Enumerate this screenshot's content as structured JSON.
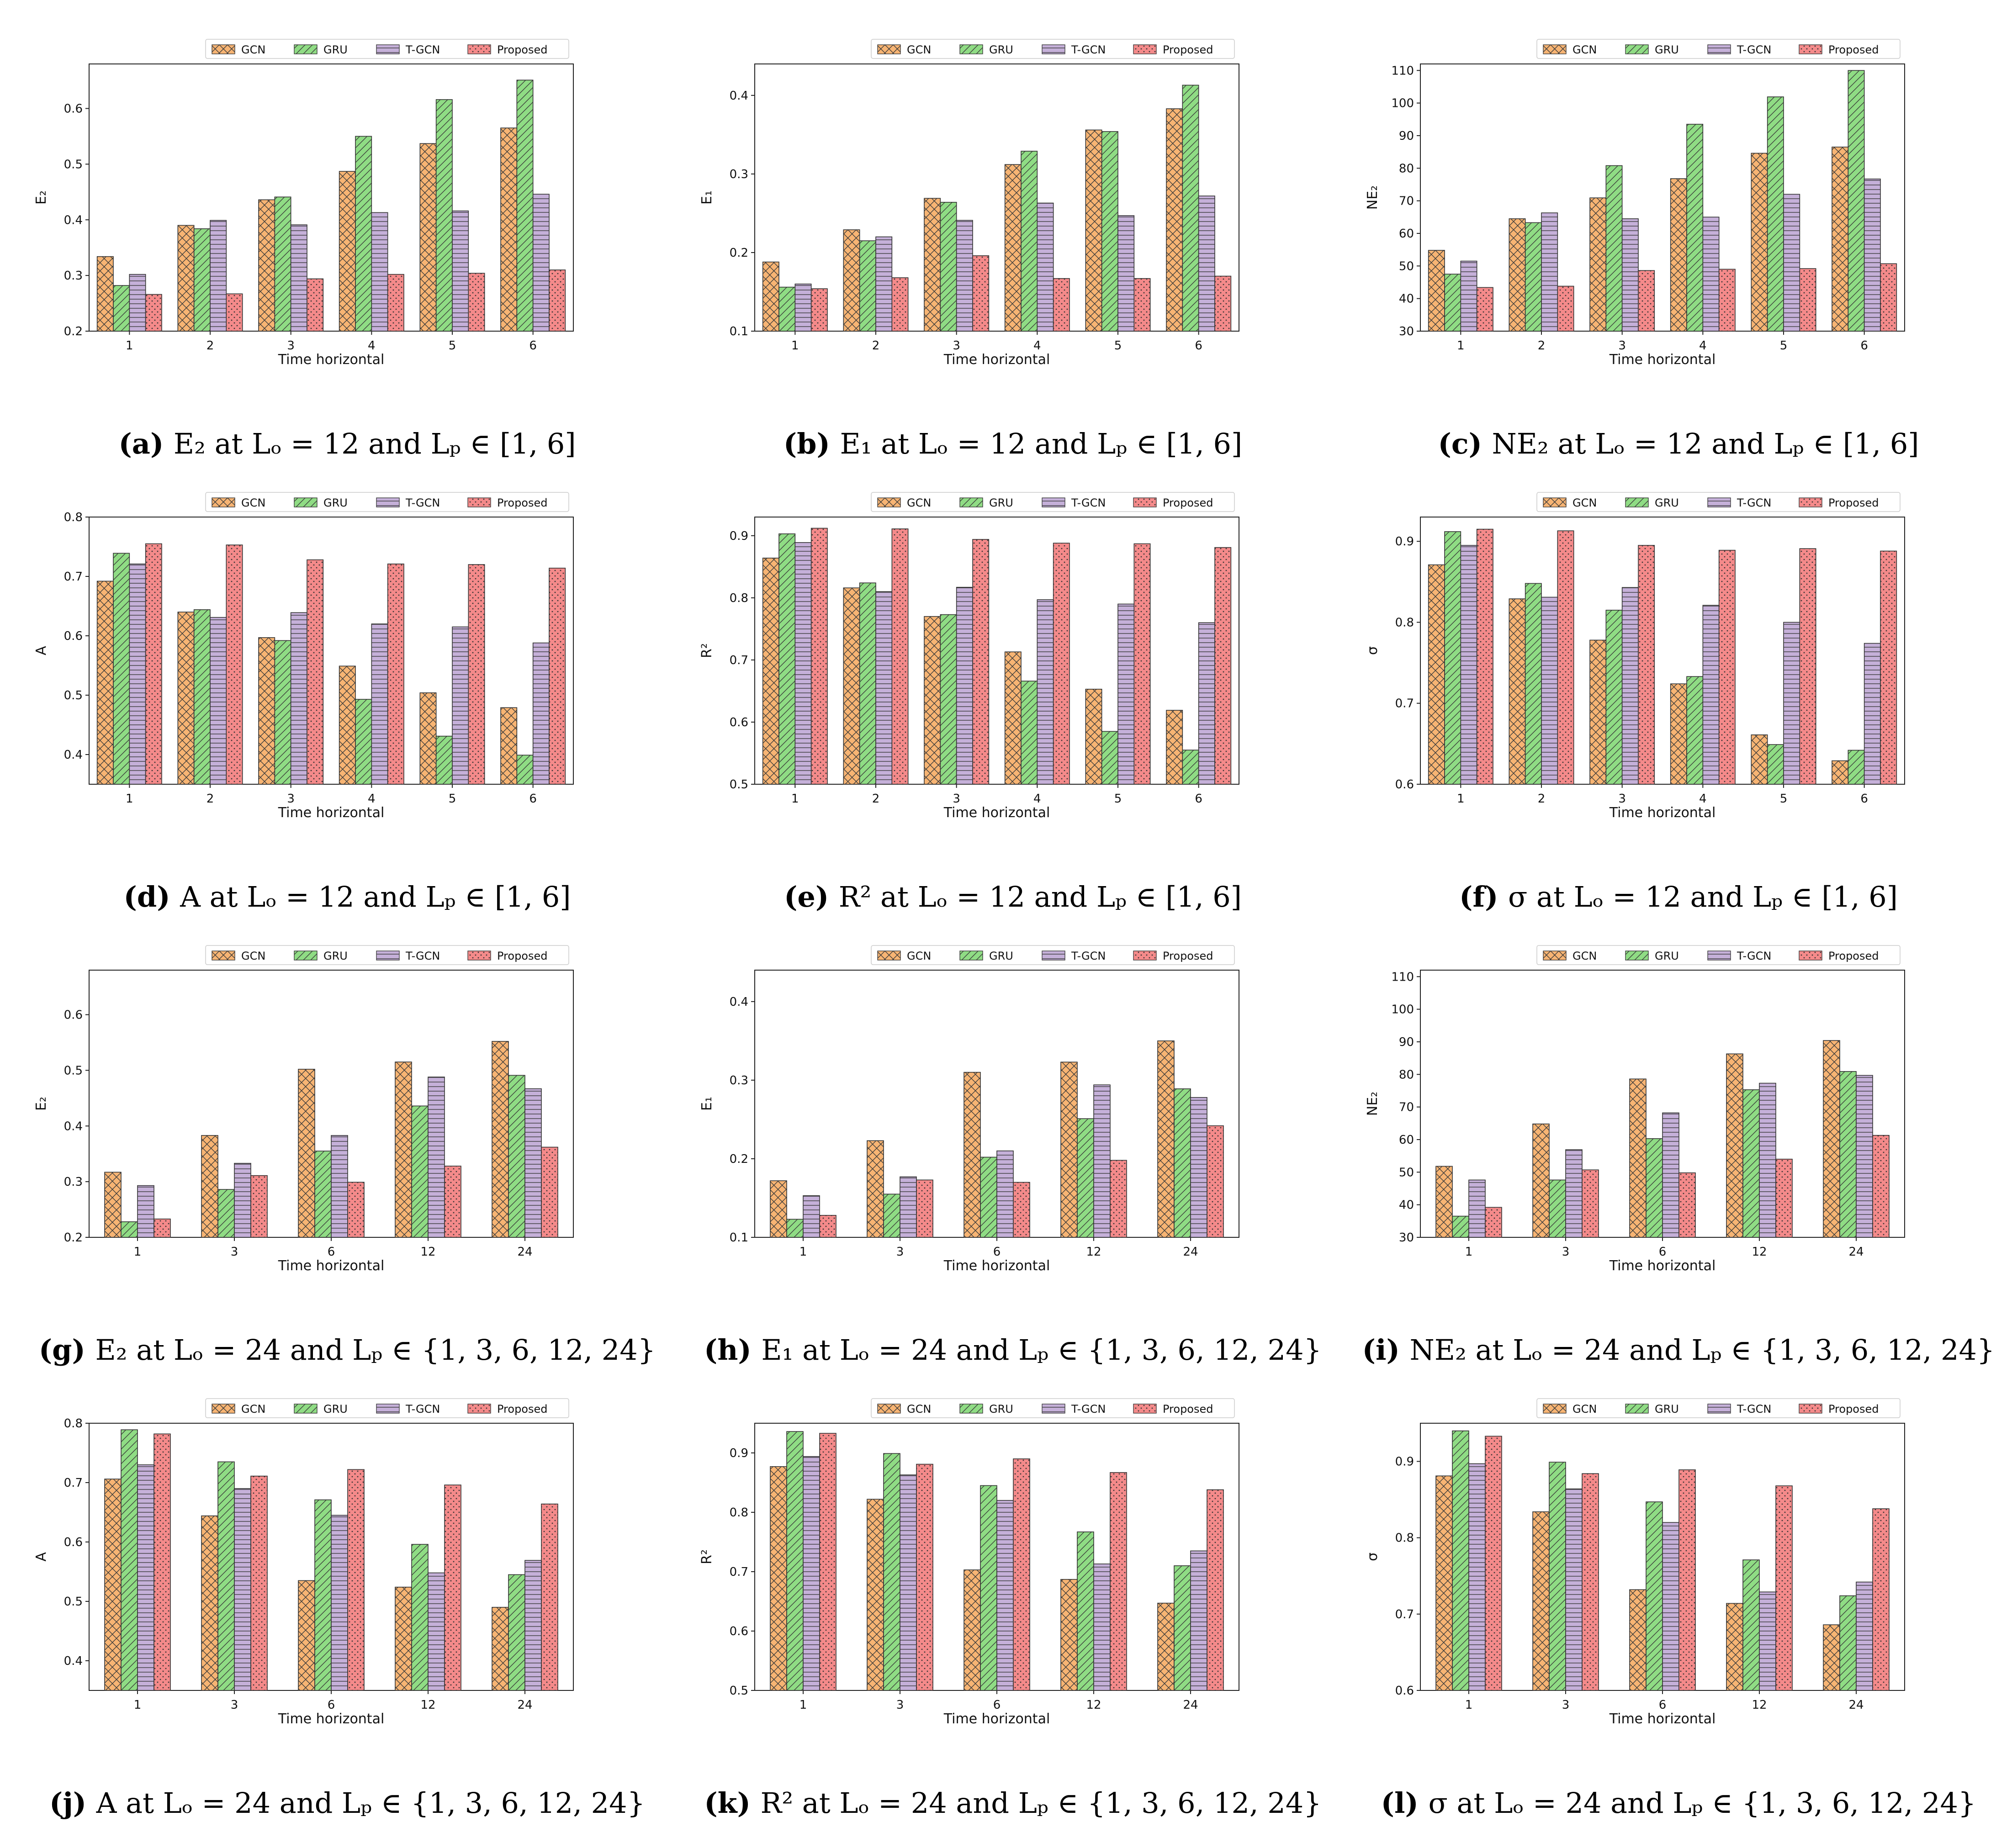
{
  "colors": {
    "GCN": "#f7b473",
    "GRU": "#8fdc84",
    "T-GCN": "#c5b0d9",
    "Proposed": "#f48a8a"
  },
  "chart_data": [
    {
      "type": "bar",
      "panel": "a",
      "caption_label": "(a)",
      "caption_text": "E₂ at Lₒ = 12 and Lₚ ∈ [1, 6]",
      "ylabel": "E₂",
      "xlabel": "Time horizontal",
      "ylim": [
        0.2,
        0.68
      ],
      "yticks": [
        0.2,
        0.3,
        0.4,
        0.5,
        0.6
      ],
      "categories": [
        "1",
        "2",
        "3",
        "4",
        "5",
        "6"
      ],
      "series": [
        {
          "name": "GCN",
          "values": [
            0.334,
            0.39,
            0.436,
            0.487,
            0.537,
            0.565
          ]
        },
        {
          "name": "GRU",
          "values": [
            0.282,
            0.384,
            0.441,
            0.55,
            0.616,
            0.651
          ]
        },
        {
          "name": "T-GCN",
          "values": [
            0.302,
            0.399,
            0.391,
            0.413,
            0.416,
            0.446
          ]
        },
        {
          "name": "Proposed",
          "values": [
            0.266,
            0.267,
            0.294,
            0.302,
            0.304,
            0.31
          ]
        }
      ]
    },
    {
      "type": "bar",
      "panel": "b",
      "caption_label": "(b)",
      "caption_text": "E₁ at Lₒ = 12 and Lₚ ∈ [1, 6]",
      "ylabel": "E₁",
      "xlabel": "Time horizontal",
      "ylim": [
        0.1,
        0.44
      ],
      "yticks": [
        0.1,
        0.2,
        0.3,
        0.4
      ],
      "categories": [
        "1",
        "2",
        "3",
        "4",
        "5",
        "6"
      ],
      "series": [
        {
          "name": "GCN",
          "values": [
            0.188,
            0.229,
            0.269,
            0.312,
            0.356,
            0.383
          ]
        },
        {
          "name": "GRU",
          "values": [
            0.156,
            0.215,
            0.264,
            0.329,
            0.354,
            0.413
          ]
        },
        {
          "name": "T-GCN",
          "values": [
            0.16,
            0.22,
            0.241,
            0.263,
            0.247,
            0.272
          ]
        },
        {
          "name": "Proposed",
          "values": [
            0.154,
            0.168,
            0.196,
            0.167,
            0.167,
            0.17
          ]
        }
      ]
    },
    {
      "type": "bar",
      "panel": "c",
      "caption_label": "(c)",
      "caption_text": "NE₂ at Lₒ = 12 and Lₚ ∈ [1, 6]",
      "ylabel": "NE₂",
      "xlabel": "Time horizontal",
      "ylim": [
        30,
        112
      ],
      "yticks": [
        30,
        40,
        50,
        60,
        70,
        80,
        90,
        100,
        110
      ],
      "categories": [
        "1",
        "2",
        "3",
        "4",
        "5",
        "6"
      ],
      "series": [
        {
          "name": "GCN",
          "values": [
            54.8,
            64.5,
            70.9,
            76.8,
            84.6,
            86.5
          ]
        },
        {
          "name": "GRU",
          "values": [
            47.5,
            63.3,
            80.8,
            93.5,
            101.9,
            110.0
          ]
        },
        {
          "name": "T-GCN",
          "values": [
            51.5,
            66.3,
            64.5,
            65.0,
            72.0,
            76.7
          ]
        },
        {
          "name": "Proposed",
          "values": [
            43.4,
            43.8,
            48.6,
            49.0,
            49.2,
            50.7
          ]
        }
      ]
    },
    {
      "type": "bar",
      "panel": "d",
      "caption_label": "(d)",
      "caption_text": "A at Lₒ = 12 and Lₚ ∈ [1, 6]",
      "ylabel": "A",
      "xlabel": "Time horizontal",
      "ylim": [
        0.35,
        0.8
      ],
      "yticks": [
        0.4,
        0.5,
        0.6,
        0.7,
        0.8
      ],
      "categories": [
        "1",
        "2",
        "3",
        "4",
        "5",
        "6"
      ],
      "series": [
        {
          "name": "GCN",
          "values": [
            0.692,
            0.64,
            0.597,
            0.549,
            0.504,
            0.479
          ]
        },
        {
          "name": "GRU",
          "values": [
            0.739,
            0.644,
            0.592,
            0.493,
            0.431,
            0.399
          ]
        },
        {
          "name": "T-GCN",
          "values": [
            0.721,
            0.631,
            0.639,
            0.62,
            0.615,
            0.588
          ]
        },
        {
          "name": "Proposed",
          "values": [
            0.755,
            0.753,
            0.728,
            0.721,
            0.72,
            0.714
          ]
        }
      ]
    },
    {
      "type": "bar",
      "panel": "e",
      "caption_label": "(e)",
      "caption_text": "R² at Lₒ = 12 and Lₚ ∈ [1, 6]",
      "ylabel": "R²",
      "xlabel": "Time horizontal",
      "ylim": [
        0.5,
        0.93
      ],
      "yticks": [
        0.5,
        0.6,
        0.7,
        0.8,
        0.9
      ],
      "categories": [
        "1",
        "2",
        "3",
        "4",
        "5",
        "6"
      ],
      "series": [
        {
          "name": "GCN",
          "values": [
            0.864,
            0.816,
            0.77,
            0.713,
            0.653,
            0.619
          ]
        },
        {
          "name": "GRU",
          "values": [
            0.903,
            0.824,
            0.773,
            0.666,
            0.585,
            0.555
          ]
        },
        {
          "name": "T-GCN",
          "values": [
            0.889,
            0.81,
            0.817,
            0.797,
            0.79,
            0.76
          ]
        },
        {
          "name": "Proposed",
          "values": [
            0.912,
            0.911,
            0.894,
            0.888,
            0.887,
            0.881
          ]
        }
      ]
    },
    {
      "type": "bar",
      "panel": "f",
      "caption_label": "(f)",
      "caption_text": "σ at Lₒ = 12 and Lₚ ∈ [1, 6]",
      "ylabel": "σ",
      "xlabel": "Time horizontal",
      "ylim": [
        0.6,
        0.93
      ],
      "yticks": [
        0.6,
        0.7,
        0.8,
        0.9
      ],
      "categories": [
        "1",
        "2",
        "3",
        "4",
        "5",
        "6"
      ],
      "series": [
        {
          "name": "GCN",
          "values": [
            0.871,
            0.829,
            0.778,
            0.724,
            0.661,
            0.629
          ]
        },
        {
          "name": "GRU",
          "values": [
            0.912,
            0.848,
            0.815,
            0.733,
            0.649,
            0.642
          ]
        },
        {
          "name": "T-GCN",
          "values": [
            0.895,
            0.831,
            0.843,
            0.821,
            0.8,
            0.774
          ]
        },
        {
          "name": "Proposed",
          "values": [
            0.915,
            0.913,
            0.895,
            0.889,
            0.891,
            0.888
          ]
        }
      ]
    },
    {
      "type": "bar",
      "panel": "g",
      "caption_label": "(g)",
      "caption_text": "E₂ at Lₒ = 24 and Lₚ ∈ {1, 3, 6, 12, 24}",
      "ylabel": "E₂",
      "xlabel": "Time horizontal",
      "ylim": [
        0.2,
        0.68
      ],
      "yticks": [
        0.2,
        0.3,
        0.4,
        0.5,
        0.6
      ],
      "categories": [
        "1",
        "3",
        "6",
        "12",
        "24"
      ],
      "series": [
        {
          "name": "GCN",
          "values": [
            0.317,
            0.383,
            0.502,
            0.515,
            0.552
          ]
        },
        {
          "name": "GRU",
          "values": [
            0.228,
            0.286,
            0.355,
            0.436,
            0.491
          ]
        },
        {
          "name": "T-GCN",
          "values": [
            0.293,
            0.333,
            0.383,
            0.488,
            0.467
          ]
        },
        {
          "name": "Proposed",
          "values": [
            0.233,
            0.311,
            0.299,
            0.328,
            0.362
          ]
        }
      ]
    },
    {
      "type": "bar",
      "panel": "h",
      "caption_label": "(h)",
      "caption_text": "E₁ at Lₒ = 24 and Lₚ ∈ {1, 3, 6, 12, 24}",
      "ylabel": "E₁",
      "xlabel": "Time horizontal",
      "ylim": [
        0.1,
        0.44
      ],
      "yticks": [
        0.1,
        0.2,
        0.3,
        0.4
      ],
      "categories": [
        "1",
        "3",
        "6",
        "12",
        "24"
      ],
      "series": [
        {
          "name": "GCN",
          "values": [
            0.172,
            0.223,
            0.31,
            0.323,
            0.35
          ]
        },
        {
          "name": "GRU",
          "values": [
            0.123,
            0.155,
            0.202,
            0.251,
            0.289
          ]
        },
        {
          "name": "T-GCN",
          "values": [
            0.153,
            0.177,
            0.21,
            0.294,
            0.278
          ]
        },
        {
          "name": "Proposed",
          "values": [
            0.128,
            0.173,
            0.17,
            0.198,
            0.242
          ]
        }
      ]
    },
    {
      "type": "bar",
      "panel": "i",
      "caption_label": "(i)",
      "caption_text": "NE₂ at Lₒ = 24 and Lₚ ∈ {1, 3, 6, 12, 24}",
      "ylabel": "NE₂",
      "xlabel": "Time horizontal",
      "ylim": [
        30,
        112
      ],
      "yticks": [
        30,
        40,
        50,
        60,
        70,
        80,
        90,
        100,
        110
      ],
      "categories": [
        "1",
        "3",
        "6",
        "12",
        "24"
      ],
      "series": [
        {
          "name": "GCN",
          "values": [
            51.8,
            64.8,
            78.6,
            86.3,
            90.4
          ]
        },
        {
          "name": "GRU",
          "values": [
            36.5,
            47.6,
            60.3,
            75.3,
            80.9
          ]
        },
        {
          "name": "T-GCN",
          "values": [
            47.6,
            56.9,
            68.2,
            77.3,
            79.7
          ]
        },
        {
          "name": "Proposed",
          "values": [
            39.2,
            50.7,
            49.8,
            54.0,
            61.3
          ]
        }
      ]
    },
    {
      "type": "bar",
      "panel": "j",
      "caption_label": "(j)",
      "caption_text": "A at Lₒ = 24 and Lₚ ∈ {1, 3, 6, 12, 24}",
      "ylabel": "A",
      "xlabel": "Time horizontal",
      "ylim": [
        0.35,
        0.8
      ],
      "yticks": [
        0.4,
        0.5,
        0.6,
        0.7,
        0.8
      ],
      "categories": [
        "1",
        "3",
        "6",
        "12",
        "24"
      ],
      "series": [
        {
          "name": "GCN",
          "values": [
            0.706,
            0.644,
            0.535,
            0.524,
            0.49
          ]
        },
        {
          "name": "GRU",
          "values": [
            0.789,
            0.735,
            0.671,
            0.596,
            0.545
          ]
        },
        {
          "name": "T-GCN",
          "values": [
            0.73,
            0.69,
            0.645,
            0.548,
            0.569
          ]
        },
        {
          "name": "Proposed",
          "values": [
            0.782,
            0.711,
            0.722,
            0.696,
            0.664
          ]
        }
      ]
    },
    {
      "type": "bar",
      "panel": "k",
      "caption_label": "(k)",
      "caption_text": "R² at Lₒ = 24 and Lₚ ∈ {1, 3, 6, 12, 24}",
      "ylabel": "R²",
      "xlabel": "Time horizontal",
      "ylim": [
        0.5,
        0.95
      ],
      "yticks": [
        0.5,
        0.6,
        0.7,
        0.8,
        0.9
      ],
      "categories": [
        "1",
        "3",
        "6",
        "12",
        "24"
      ],
      "series": [
        {
          "name": "GCN",
          "values": [
            0.877,
            0.822,
            0.703,
            0.687,
            0.647
          ]
        },
        {
          "name": "GRU",
          "values": [
            0.936,
            0.899,
            0.845,
            0.767,
            0.71
          ]
        },
        {
          "name": "T-GCN",
          "values": [
            0.894,
            0.863,
            0.82,
            0.713,
            0.735
          ]
        },
        {
          "name": "Proposed",
          "values": [
            0.933,
            0.881,
            0.89,
            0.867,
            0.838
          ]
        }
      ]
    },
    {
      "type": "bar",
      "panel": "l",
      "caption_label": "(l)",
      "caption_text": "σ at Lₒ = 24 and Lₚ ∈ {1, 3, 6, 12, 24}",
      "ylabel": "σ",
      "xlabel": "Time horizontal",
      "ylim": [
        0.6,
        0.95
      ],
      "yticks": [
        0.6,
        0.7,
        0.8,
        0.9
      ],
      "categories": [
        "1",
        "3",
        "6",
        "12",
        "24"
      ],
      "series": [
        {
          "name": "GCN",
          "values": [
            0.881,
            0.834,
            0.732,
            0.714,
            0.686
          ]
        },
        {
          "name": "GRU",
          "values": [
            0.94,
            0.899,
            0.847,
            0.771,
            0.724
          ]
        },
        {
          "name": "T-GCN",
          "values": [
            0.897,
            0.864,
            0.82,
            0.729,
            0.742
          ]
        },
        {
          "name": "Proposed",
          "values": [
            0.933,
            0.884,
            0.889,
            0.868,
            0.838
          ]
        }
      ]
    }
  ]
}
